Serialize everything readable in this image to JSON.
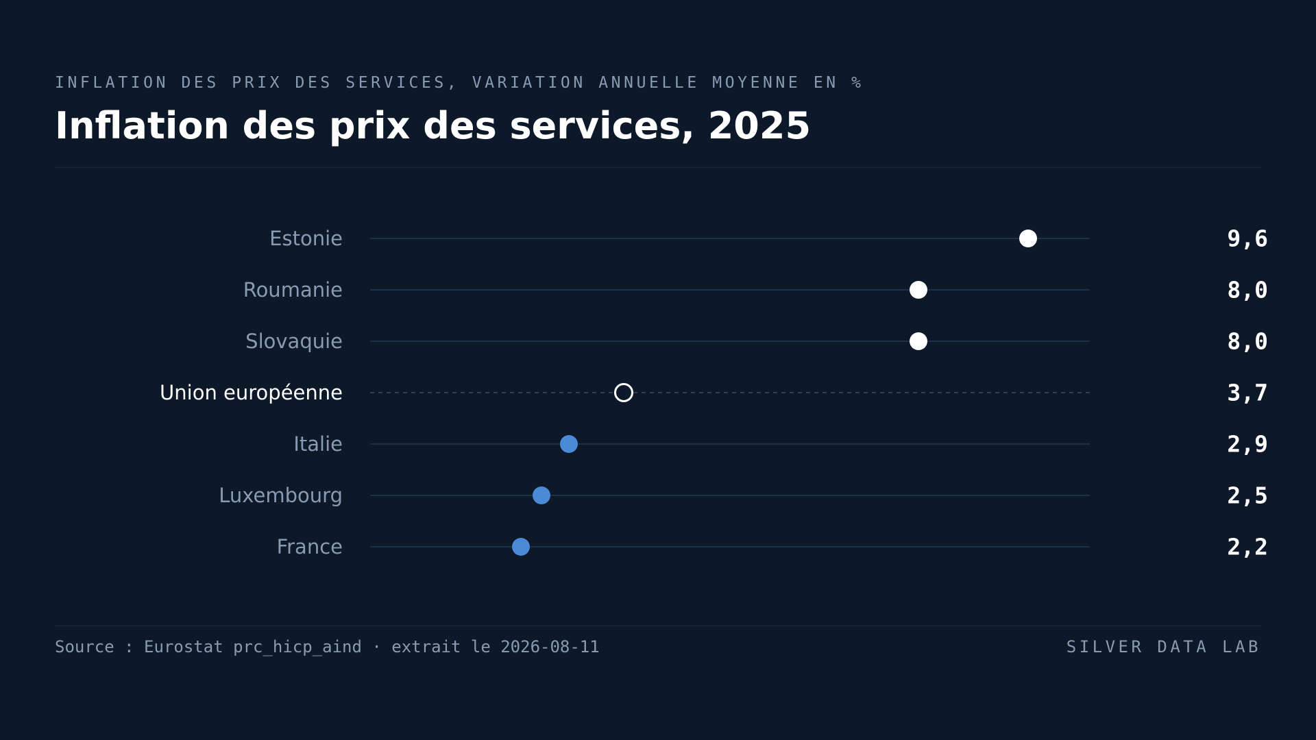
{
  "header": {
    "kicker": "INFLATION DES PRIX DES SERVICES, VARIATION ANNUELLE MOYENNE EN %",
    "title": "Inflation des prix des services, 2025"
  },
  "footer": {
    "source": "Source : Eurostat prc_hicp_aind · extrait le 2026-08-11",
    "brand": "SILVER DATA LAB"
  },
  "colors": {
    "background": "#0d1929",
    "high": "#ffffff",
    "low": "#4a8ad6",
    "reference_ring": "#ffffff",
    "track": "#1e3048",
    "label": "#8b9ab3",
    "label_highlight": "#ffffff",
    "value": "#ffffff"
  },
  "chart_data": {
    "type": "dot",
    "xlim": [
      0,
      10.5
    ],
    "reference_category": "Union européenne",
    "categories": [
      "Estonie",
      "Roumanie",
      "Slovaquie",
      "Union européenne",
      "Italie",
      "Luxembourg",
      "France"
    ],
    "values": [
      9.6,
      8.0,
      8.0,
      3.7,
      2.9,
      2.5,
      2.2
    ],
    "value_labels": [
      "9,6",
      "8,0",
      "8,0",
      "3,7",
      "2,9",
      "2,5",
      "2,2"
    ],
    "point_style": [
      "high",
      "high",
      "high",
      "reference",
      "low",
      "low",
      "low"
    ]
  }
}
